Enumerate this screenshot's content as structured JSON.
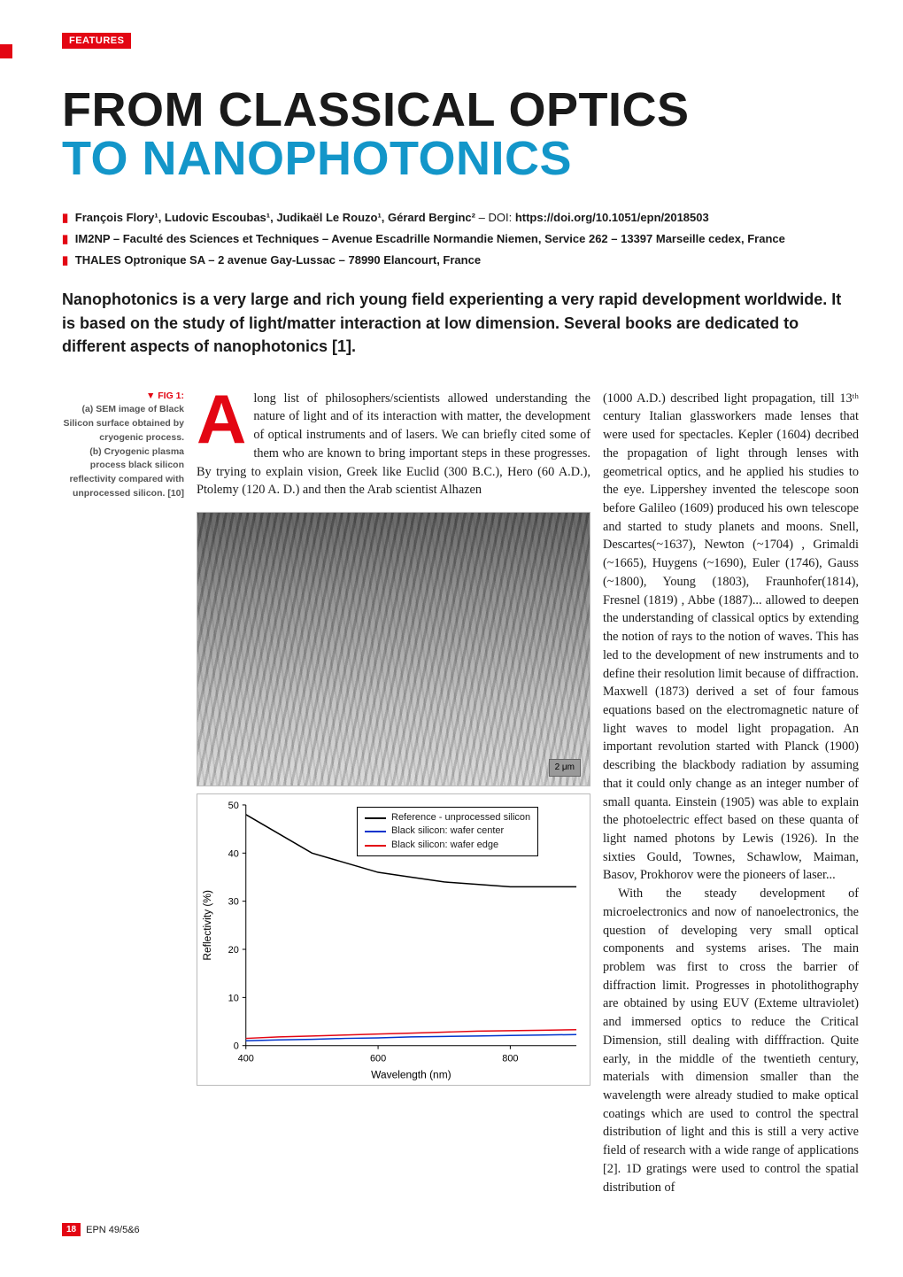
{
  "section_label": "FEATURES",
  "title_line1": "FROM CLASSICAL OPTICS",
  "title_line2": "TO NANOPHOTONICS",
  "authors_html": "François Flory¹, Ludovic Escoubas¹, Judikaël Le Rouzo¹, Gérard Berginc²",
  "doi_label": "– DOI:",
  "doi": "https://doi.org/10.1051/epn/2018503",
  "affil1": "IM2NP – Faculté des Sciences et Techniques – Avenue Escadrille Normandie Niemen, Service 262 – 13397 Marseille cedex, France",
  "affil2": "THALES Optronique SA – 2 avenue Gay-Lussac – 78990 Elancourt, France",
  "abstract": "Nanophotonics is a very large and rich young field experienting a very rapid development worldwide. It is based on the study of light/matter interaction at low dimension. Several books are dedicated to different aspects of nanophotonics [1].",
  "side_caption": {
    "head": "▼ FIG 1:",
    "a": "(a) SEM image of Black Silicon surface obtained by cryogenic process.",
    "b": "(b) Cryogenic plasma process black silicon reflectivity compared with unprocessed silicon. [10]"
  },
  "col1_drop": "A",
  "col1_p1": "long list of philosophers/scientists allowed understanding the nature of light and of its interaction with matter, the development of optical instruments and of lasers. We can briefly cited some of them who are known to bring important steps in these progresses. By trying to explain vision, Greek like Euclid (300 B.C.), Hero (60 A.D.), Ptolemy (120 A. D.) and then the Arab scientist Alhazen",
  "col2_p1": "(1000 A.D.) described light propagation, till 13ᵗʰ century Italian glassworkers made lenses that were used for spectacles. Kepler (1604) decribed the propagation of light through lenses with geometrical optics, and he applied his studies to the eye. Lippershey invented the telescope soon before Galileo (1609) produced his own telescope and started to study planets and moons. Snell, Descartes(~1637), Newton (~1704) , Grimaldi (~1665), Huygens (~1690), Euler (1746), Gauss (~1800), Young (1803), Fraunhofer(1814), Fresnel (1819) , Abbe (1887)... allowed to deepen the understanding of classical optics by extending the notion of rays to the notion of waves. This has led to the development of new instruments and to define their resolution limit because of diffraction. Maxwell (1873) derived a set of four famous equations based on the electromagnetic nature of light waves to model light propagation. An important revolution started with Planck (1900) describing the blackbody radiation by assuming that it could only change as an integer number of small quanta. Einstein (1905) was able to explain the photoelectric effect based on these quanta of light named photons by Lewis (1926). In the sixties Gould, Townes, Schawlow, Maiman, Basov, Prokhorov were the pioneers of laser...",
  "col2_p2": "With the steady development of microelectronics and now of nanoelectronics, the question of developing very small optical components and systems arises. The main problem was first to cross the barrier of diffraction limit. Progresses in photolithography are obtained by using EUV (Exteme ultraviolet) and immersed optics to reduce the Critical Dimension, still dealing with difffraction. Quite early, in the middle of the twentieth century, materials with dimension smaller than the wavelength were already studied to make optical coatings which are used to control the spectral distribution of light and this is still a very active field of research with a wide range of applications [2]. 1D gratings were used to control the spatial distribution of",
  "sem": {
    "scale_label": "2 μm"
  },
  "chart": {
    "type": "line",
    "xlabel": "Wavelength (nm)",
    "ylabel": "Reflectivity (%)",
    "xlim": [
      400,
      900
    ],
    "ylim": [
      0,
      50
    ],
    "xticks": [
      400,
      600,
      800
    ],
    "yticks": [
      0,
      10,
      20,
      30,
      40,
      50
    ],
    "background_color": "#ffffff",
    "series": [
      {
        "name": "Reference - unprocessed silicon",
        "color": "#000000",
        "x": [
          400,
          450,
          500,
          550,
          600,
          650,
          700,
          750,
          800,
          850,
          900
        ],
        "y": [
          48,
          44,
          40,
          38,
          36,
          35,
          34,
          33.5,
          33,
          33,
          33
        ]
      },
      {
        "name": "Black silicon: wafer center",
        "color": "#0033cc",
        "x": [
          400,
          450,
          500,
          550,
          600,
          650,
          700,
          750,
          800,
          850,
          900
        ],
        "y": [
          1,
          1.2,
          1.3,
          1.5,
          1.6,
          1.8,
          1.9,
          2.0,
          2.1,
          2.2,
          2.3
        ]
      },
      {
        "name": "Black silicon: wafer edge",
        "color": "#e30613",
        "x": [
          400,
          450,
          500,
          550,
          600,
          650,
          700,
          750,
          800,
          850,
          900
        ],
        "y": [
          1.5,
          1.8,
          2.0,
          2.2,
          2.4,
          2.6,
          2.8,
          3.0,
          3.1,
          3.2,
          3.3
        ]
      }
    ]
  },
  "page_number": "18",
  "issue": "EPN 49/5&6"
}
